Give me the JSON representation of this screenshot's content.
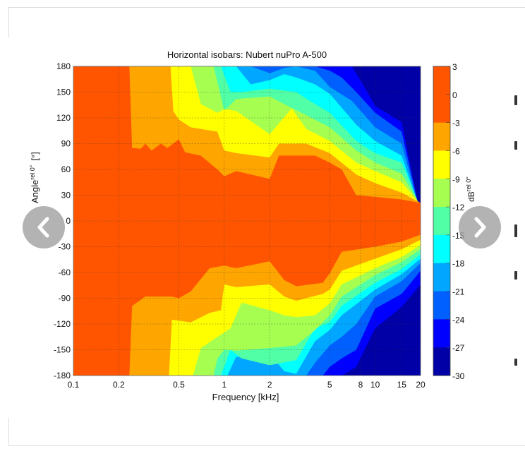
{
  "chart_data": {
    "type": "heatmap",
    "style": "filled-contour",
    "title": "Horizontal isobars: Nubert  nuPro A-500",
    "xlabel": "Frequency [kHz]",
    "ylabel": {
      "main": "Angle",
      "sub": "rel 0°",
      "unit": "[°]"
    },
    "colorbar_label": {
      "main": "dB",
      "sub": "rel 0°"
    },
    "xscale": "log",
    "xlim": [
      0.1,
      20
    ],
    "ylim": [
      -180,
      180
    ],
    "grid": true,
    "xticks": [
      0.1,
      0.2,
      0.5,
      1,
      2,
      5,
      8,
      10,
      15,
      20
    ],
    "xtick_labels": [
      "0.1",
      "0.2",
      "0.5",
      "1",
      "2",
      "5",
      "8",
      "10",
      "15",
      "20"
    ],
    "yticks": [
      180,
      150,
      120,
      90,
      60,
      30,
      0,
      -30,
      -60,
      -90,
      -120,
      -150,
      -180
    ],
    "ytick_labels": [
      "180",
      "150",
      "120",
      "90",
      "60",
      "30",
      "0",
      "-30",
      "-60",
      "-90",
      "-120",
      "-150",
      "-180"
    ],
    "colorbar_ticks": [
      "3",
      "0",
      "-3",
      "-6",
      "-9",
      "-12",
      "-15",
      "-18",
      "-21",
      "-24",
      "-27",
      "-30"
    ],
    "colorbar_range": [
      -30,
      3
    ],
    "colorbar_bands": [
      {
        "from": 0,
        "to": 3,
        "color": "#ff5500"
      },
      {
        "from": -3,
        "to": 0,
        "color": "#ff5500"
      },
      {
        "from": -6,
        "to": -3,
        "color": "#ffa500"
      },
      {
        "from": -9,
        "to": -6,
        "color": "#ffff00"
      },
      {
        "from": -12,
        "to": -9,
        "color": "#a6ff50"
      },
      {
        "from": -15,
        "to": -12,
        "color": "#50ffa6"
      },
      {
        "from": -18,
        "to": -15,
        "color": "#00ffff"
      },
      {
        "from": -21,
        "to": -18,
        "color": "#00a6ff"
      },
      {
        "from": -24,
        "to": -21,
        "color": "#0060ff"
      },
      {
        "from": -27,
        "to": -24,
        "color": "#0000ff"
      },
      {
        "from": -30,
        "to": -27,
        "color": "#0000a6"
      }
    ],
    "contours": [
      {
        "level": -27,
        "color_above": "#0000ff",
        "upper": [
          [
            0.1,
            180
          ],
          [
            7,
            180
          ],
          [
            8,
            164
          ],
          [
            10,
            134
          ],
          [
            15,
            115
          ],
          [
            20,
            5
          ]
        ],
        "lower": [
          [
            0.1,
            -180
          ],
          [
            6,
            -180
          ],
          [
            7.5,
            -170
          ],
          [
            10,
            -125
          ],
          [
            15,
            -100
          ],
          [
            20,
            -74
          ]
        ]
      },
      {
        "level": -24,
        "color_above": "#0060ff",
        "upper": [
          [
            0.1,
            180
          ],
          [
            4,
            180
          ],
          [
            5,
            175
          ],
          [
            6,
            167
          ],
          [
            7.5,
            150
          ],
          [
            10,
            126
          ],
          [
            15,
            104
          ],
          [
            20,
            7
          ]
        ],
        "lower": [
          [
            0.1,
            -180
          ],
          [
            4.5,
            -180
          ],
          [
            5,
            -170
          ],
          [
            6,
            -160
          ],
          [
            7.5,
            -150
          ],
          [
            10,
            -102
          ],
          [
            15,
            -85
          ],
          [
            20,
            -58
          ]
        ]
      },
      {
        "level": -21,
        "color_above": "#00a6ff",
        "upper": [
          [
            0.1,
            180
          ],
          [
            1.5,
            180
          ],
          [
            2,
            172
          ],
          [
            2.5,
            178
          ],
          [
            3,
            180
          ],
          [
            4,
            175
          ],
          [
            5,
            156
          ],
          [
            7,
            140
          ],
          [
            10,
            109
          ],
          [
            15,
            90
          ],
          [
            20,
            8
          ]
        ],
        "lower": [
          [
            0.1,
            -180
          ],
          [
            3.5,
            -180
          ],
          [
            4,
            -165
          ],
          [
            5,
            -145
          ],
          [
            6,
            -135
          ],
          [
            7.5,
            -120
          ],
          [
            10,
            -88
          ],
          [
            15,
            -70
          ],
          [
            20,
            -49
          ]
        ]
      },
      {
        "level": -18,
        "color_above": "#00ffff",
        "upper": [
          [
            0.1,
            180
          ],
          [
            1.2,
            180
          ],
          [
            1.5,
            159
          ],
          [
            2,
            164
          ],
          [
            2.5,
            171
          ],
          [
            3,
            167
          ],
          [
            4,
            159
          ],
          [
            5,
            148
          ],
          [
            7.5,
            112
          ],
          [
            10,
            93
          ],
          [
            15,
            76
          ],
          [
            20,
            11
          ]
        ],
        "lower": [
          [
            0.1,
            -180
          ],
          [
            1.05,
            -180
          ],
          [
            1.2,
            -158
          ],
          [
            1.5,
            -160
          ],
          [
            2,
            -155
          ],
          [
            2.5,
            -175
          ],
          [
            3,
            -178
          ],
          [
            4,
            -140
          ],
          [
            5,
            -127
          ],
          [
            6,
            -110
          ],
          [
            10,
            -80
          ],
          [
            15,
            -62
          ],
          [
            20,
            -44
          ]
        ]
      },
      {
        "level": -15,
        "color_above": "#50ffa6",
        "upper": [
          [
            0.1,
            180
          ],
          [
            0.95,
            180
          ],
          [
            1.1,
            150
          ],
          [
            1.3,
            150
          ],
          [
            2,
            154
          ],
          [
            3,
            150
          ],
          [
            4,
            136
          ],
          [
            5,
            126
          ],
          [
            7.5,
            93
          ],
          [
            10,
            79
          ],
          [
            15,
            68
          ],
          [
            20,
            15
          ]
        ],
        "lower": [
          [
            0.1,
            -180
          ],
          [
            0.95,
            -180
          ],
          [
            1.1,
            -150
          ],
          [
            1.3,
            -160
          ],
          [
            2,
            -168
          ],
          [
            3,
            -162
          ],
          [
            4,
            -125
          ],
          [
            5,
            -118
          ],
          [
            6,
            -99
          ],
          [
            10,
            -72
          ],
          [
            15,
            -56
          ],
          [
            20,
            -39
          ]
        ]
      },
      {
        "level": -12,
        "color_above": "#a6ff50",
        "upper": [
          [
            0.1,
            180
          ],
          [
            0.85,
            180
          ],
          [
            1,
            128
          ],
          [
            1.2,
            142
          ],
          [
            2,
            145
          ],
          [
            2.5,
            136
          ],
          [
            3.5,
            123
          ],
          [
            5,
            109
          ],
          [
            7.5,
            82
          ],
          [
            10,
            68
          ],
          [
            15,
            55
          ],
          [
            20,
            17
          ]
        ],
        "lower": [
          [
            0.1,
            -180
          ],
          [
            0.85,
            -180
          ],
          [
            0.9,
            -160
          ],
          [
            1,
            -150
          ],
          [
            1.2,
            -151
          ],
          [
            2,
            -148
          ],
          [
            3,
            -145
          ],
          [
            4,
            -127
          ],
          [
            5,
            -110
          ],
          [
            6,
            -88
          ],
          [
            10,
            -63
          ],
          [
            15,
            -48
          ],
          [
            20,
            -33
          ]
        ]
      },
      {
        "level": -9,
        "color_above": "#ffff00",
        "upper": [
          [
            0.1,
            180
          ],
          [
            0.6,
            180
          ],
          [
            0.7,
            136
          ],
          [
            0.9,
            126
          ],
          [
            1,
            130
          ],
          [
            1.2,
            128
          ],
          [
            2,
            101
          ],
          [
            2.8,
            131
          ],
          [
            3.5,
            107
          ],
          [
            5,
            93
          ],
          [
            7.5,
            68
          ],
          [
            10,
            58
          ],
          [
            15,
            45
          ],
          [
            20,
            19
          ]
        ],
        "lower": [
          [
            0.1,
            -180
          ],
          [
            0.62,
            -180
          ],
          [
            0.7,
            -148
          ],
          [
            0.9,
            -135
          ],
          [
            1.1,
            -125
          ],
          [
            1.3,
            -95
          ],
          [
            2,
            -104
          ],
          [
            2.5,
            -110
          ],
          [
            3,
            -112
          ],
          [
            4,
            -110
          ],
          [
            5,
            -96
          ],
          [
            6,
            -74
          ],
          [
            10,
            -55
          ],
          [
            15,
            -42
          ],
          [
            20,
            -28
          ]
        ]
      },
      {
        "level": -6,
        "color_above": "#ffa500",
        "upper": [
          [
            0.1,
            180
          ],
          [
            0.44,
            180
          ],
          [
            0.46,
            128
          ],
          [
            0.5,
            118
          ],
          [
            0.6,
            109
          ],
          [
            0.9,
            104
          ],
          [
            1,
            82
          ],
          [
            1.2,
            79
          ],
          [
            2,
            74
          ],
          [
            2.3,
            90
          ],
          [
            3.5,
            90
          ],
          [
            5,
            79
          ],
          [
            7.5,
            54
          ],
          [
            10,
            44
          ],
          [
            15,
            33
          ],
          [
            20,
            21
          ]
        ],
        "lower": [
          [
            0.1,
            -180
          ],
          [
            0.43,
            -180
          ],
          [
            0.45,
            -115
          ],
          [
            0.6,
            -118
          ],
          [
            0.8,
            -107
          ],
          [
            0.95,
            -104
          ],
          [
            1,
            -74
          ],
          [
            1.2,
            -77
          ],
          [
            2,
            -74
          ],
          [
            2.5,
            -88
          ],
          [
            3,
            -93
          ],
          [
            4.5,
            -85
          ],
          [
            5,
            -80
          ],
          [
            6,
            -58
          ],
          [
            10,
            -44
          ],
          [
            15,
            -33
          ],
          [
            20,
            -22
          ]
        ]
      },
      {
        "level": -3,
        "color_above": "#ff5500",
        "upper": [
          [
            0.1,
            180
          ],
          [
            0.235,
            180
          ],
          [
            0.245,
            85
          ],
          [
            0.28,
            84
          ],
          [
            0.3,
            90
          ],
          [
            0.33,
            82
          ],
          [
            0.38,
            90
          ],
          [
            0.42,
            85
          ],
          [
            0.5,
            95
          ],
          [
            0.55,
            80
          ],
          [
            0.7,
            76
          ],
          [
            0.9,
            60
          ],
          [
            1,
            52
          ],
          [
            1.2,
            58
          ],
          [
            2,
            49
          ],
          [
            2.3,
            76
          ],
          [
            4,
            76
          ],
          [
            5,
            68
          ],
          [
            6,
            60
          ],
          [
            7.5,
            30
          ],
          [
            10,
            28
          ],
          [
            15,
            25
          ],
          [
            20,
            21
          ]
        ],
        "lower": [
          [
            0.1,
            -180
          ],
          [
            0.235,
            -180
          ],
          [
            0.245,
            -99
          ],
          [
            0.3,
            -88
          ],
          [
            0.45,
            -88
          ],
          [
            0.5,
            -90
          ],
          [
            0.6,
            -82
          ],
          [
            0.8,
            -55
          ],
          [
            1,
            -52
          ],
          [
            1.2,
            -55
          ],
          [
            2,
            -47
          ],
          [
            2.5,
            -69
          ],
          [
            3,
            -76
          ],
          [
            4.5,
            -72
          ],
          [
            5,
            -61
          ],
          [
            6,
            -36
          ],
          [
            10,
            -30
          ],
          [
            15,
            -24
          ],
          [
            20,
            -16
          ]
        ]
      }
    ],
    "base_color": "#0000a6"
  },
  "carousel": {
    "prev_icon": "chevron-left-icon",
    "next_icon": "chevron-right-icon"
  }
}
